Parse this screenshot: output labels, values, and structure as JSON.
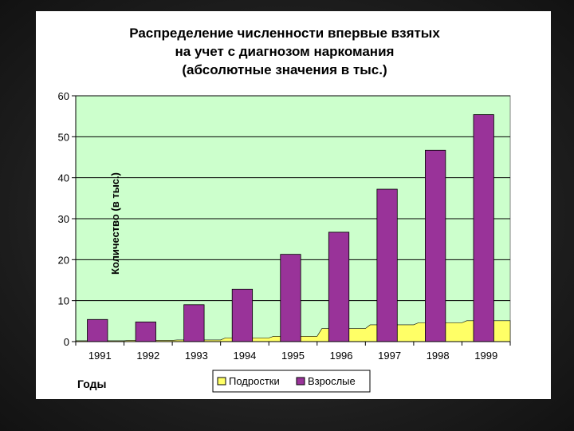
{
  "chart_data": {
    "type": "bar",
    "title_lines": [
      "Распределение численности впервые взятых",
      "на учет с диагнозом наркомания",
      "(абсолютные значения в тыс.)"
    ],
    "xlabel": "Годы",
    "ylabel": "Количество (в тыс.)",
    "categories": [
      "1991",
      "1992",
      "1993",
      "1994",
      "1995",
      "1996",
      "1997",
      "1998",
      "1999"
    ],
    "ylim": [
      0,
      60
    ],
    "yticks": [
      0,
      10,
      20,
      30,
      40,
      50,
      60
    ],
    "grid": true,
    "legend_position": "bottom",
    "series": [
      {
        "name": "Подростки",
        "render": "area",
        "color": "#ffff66",
        "values": [
          0.2,
          0.3,
          0.4,
          0.9,
          1.3,
          3.2,
          4.1,
          4.6,
          5.1
        ]
      },
      {
        "name": "Взрослые",
        "render": "bar",
        "color": "#993399",
        "values": [
          5.4,
          4.8,
          9.0,
          12.8,
          21.3,
          26.7,
          37.2,
          46.7,
          55.4
        ]
      }
    ],
    "plot_background": "#ccffcc"
  }
}
